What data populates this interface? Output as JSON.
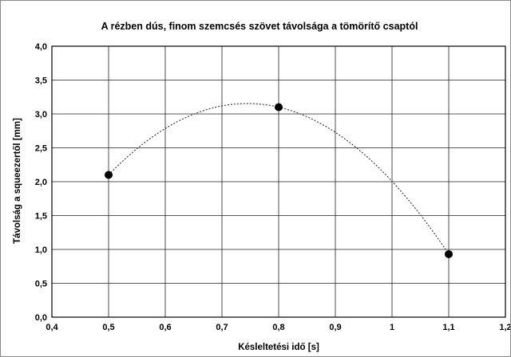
{
  "chart_data": {
    "type": "scatter",
    "title": "A rézben dús, finom szemcsés szövet távolsága a tömörítő csaptól",
    "xlabel": "Késleltetési idő [s]",
    "ylabel": "Távolság a squeezertől [mm]",
    "xlim": [
      0.4,
      1.2
    ],
    "ylim": [
      0.0,
      4.0
    ],
    "x_ticks": [
      "0,4",
      "0,5",
      "0,6",
      "0,7",
      "0,8",
      "0,9",
      "1",
      "1,1",
      "1,2"
    ],
    "x_tick_values": [
      0.4,
      0.5,
      0.6,
      0.7,
      0.8,
      0.9,
      1.0,
      1.1,
      1.2
    ],
    "y_ticks": [
      "0,0",
      "0,5",
      "1,0",
      "1,5",
      "2,0",
      "2,5",
      "3,0",
      "3,5",
      "4,0"
    ],
    "y_tick_values": [
      0.0,
      0.5,
      1.0,
      1.5,
      2.0,
      2.5,
      3.0,
      3.5,
      4.0
    ],
    "grid": true,
    "series": [
      {
        "x": [
          0.5,
          0.8,
          1.1
        ],
        "y": [
          2.1,
          3.1,
          0.93
        ]
      }
    ],
    "trendline": {
      "type": "polynomial-2",
      "style": "dotted"
    }
  }
}
